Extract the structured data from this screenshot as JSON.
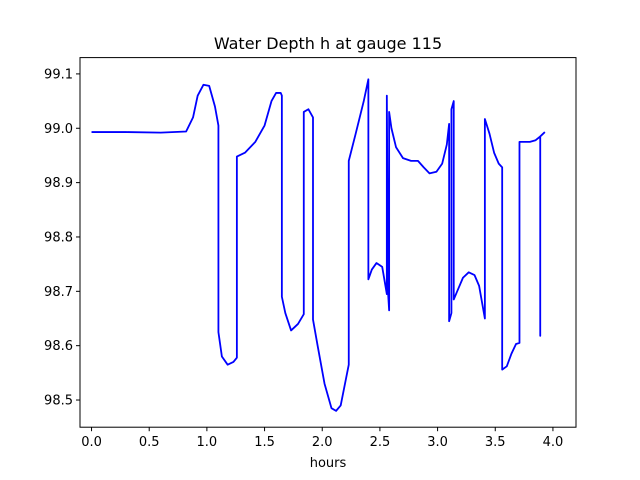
{
  "chart_data": {
    "type": "line",
    "title": "Water Depth h at gauge 115",
    "xlabel": "hours",
    "ylabel": "",
    "xlim": [
      -0.1,
      4.2
    ],
    "ylim": [
      98.45,
      99.13
    ],
    "x_ticks": [
      0.0,
      0.5,
      1.0,
      1.5,
      2.0,
      2.5,
      3.0,
      3.5,
      4.0
    ],
    "x_tick_labels": [
      "0.0",
      "0.5",
      "1.0",
      "1.5",
      "2.0",
      "2.5",
      "3.0",
      "3.5",
      "4.0"
    ],
    "y_ticks": [
      98.5,
      98.6,
      98.7,
      98.8,
      98.9,
      99.0,
      99.1
    ],
    "y_tick_labels": [
      "98.5",
      "98.6",
      "98.7",
      "98.8",
      "98.9",
      "99.0",
      "99.1"
    ],
    "grid": false,
    "legend": "none",
    "series": [
      {
        "color": "#0000ff",
        "points": [
          [
            0.0,
            98.993
          ],
          [
            0.3,
            98.993
          ],
          [
            0.6,
            98.992
          ],
          [
            0.82,
            98.994
          ],
          [
            0.88,
            99.02
          ],
          [
            0.92,
            99.06
          ],
          [
            0.97,
            99.08
          ],
          [
            1.02,
            99.078
          ],
          [
            1.07,
            99.04
          ],
          [
            1.1,
            99.005
          ],
          [
            1.1,
            98.625
          ],
          [
            1.13,
            98.58
          ],
          [
            1.18,
            98.565
          ],
          [
            1.23,
            98.57
          ],
          [
            1.26,
            98.578
          ],
          [
            1.26,
            98.948
          ],
          [
            1.33,
            98.955
          ],
          [
            1.42,
            98.975
          ],
          [
            1.5,
            99.005
          ],
          [
            1.56,
            99.05
          ],
          [
            1.6,
            99.065
          ],
          [
            1.64,
            99.065
          ],
          [
            1.65,
            99.06
          ],
          [
            1.65,
            98.69
          ],
          [
            1.68,
            98.66
          ],
          [
            1.73,
            98.628
          ],
          [
            1.79,
            98.64
          ],
          [
            1.84,
            98.658
          ],
          [
            1.84,
            99.03
          ],
          [
            1.88,
            99.035
          ],
          [
            1.92,
            99.02
          ],
          [
            1.92,
            98.648
          ],
          [
            1.96,
            98.6
          ],
          [
            2.02,
            98.53
          ],
          [
            2.08,
            98.485
          ],
          [
            2.12,
            98.48
          ],
          [
            2.16,
            98.49
          ],
          [
            2.23,
            98.565
          ],
          [
            2.23,
            98.94
          ],
          [
            2.29,
            98.99
          ],
          [
            2.36,
            99.05
          ],
          [
            2.4,
            99.09
          ],
          [
            2.4,
            98.722
          ],
          [
            2.43,
            98.74
          ],
          [
            2.47,
            98.752
          ],
          [
            2.52,
            98.745
          ],
          [
            2.56,
            98.695
          ],
          [
            2.56,
            99.06
          ],
          [
            2.57,
            98.7
          ],
          [
            2.58,
            98.665
          ],
          [
            2.58,
            99.03
          ],
          [
            2.6,
            99.0
          ],
          [
            2.64,
            98.965
          ],
          [
            2.7,
            98.945
          ],
          [
            2.77,
            98.94
          ],
          [
            2.83,
            98.94
          ],
          [
            2.88,
            98.928
          ],
          [
            2.93,
            98.917
          ],
          [
            2.99,
            98.92
          ],
          [
            3.04,
            98.935
          ],
          [
            3.08,
            98.97
          ],
          [
            3.1,
            99.008
          ],
          [
            3.1,
            98.645
          ],
          [
            3.12,
            98.66
          ],
          [
            3.12,
            99.035
          ],
          [
            3.14,
            99.05
          ],
          [
            3.14,
            98.685
          ],
          [
            3.17,
            98.7
          ],
          [
            3.22,
            98.725
          ],
          [
            3.27,
            98.735
          ],
          [
            3.32,
            98.73
          ],
          [
            3.36,
            98.71
          ],
          [
            3.41,
            98.65
          ],
          [
            3.41,
            99.017
          ],
          [
            3.45,
            98.99
          ],
          [
            3.49,
            98.955
          ],
          [
            3.53,
            98.935
          ],
          [
            3.56,
            98.928
          ],
          [
            3.56,
            98.556
          ],
          [
            3.6,
            98.562
          ],
          [
            3.64,
            98.585
          ],
          [
            3.68,
            98.603
          ],
          [
            3.71,
            98.605
          ],
          [
            3.71,
            98.975
          ],
          [
            3.75,
            98.975
          ],
          [
            3.8,
            98.975
          ],
          [
            3.85,
            98.978
          ],
          [
            3.89,
            98.985
          ],
          [
            3.89,
            98.618
          ],
          [
            3.89,
            98.985
          ],
          [
            3.93,
            98.993
          ]
        ]
      }
    ]
  }
}
